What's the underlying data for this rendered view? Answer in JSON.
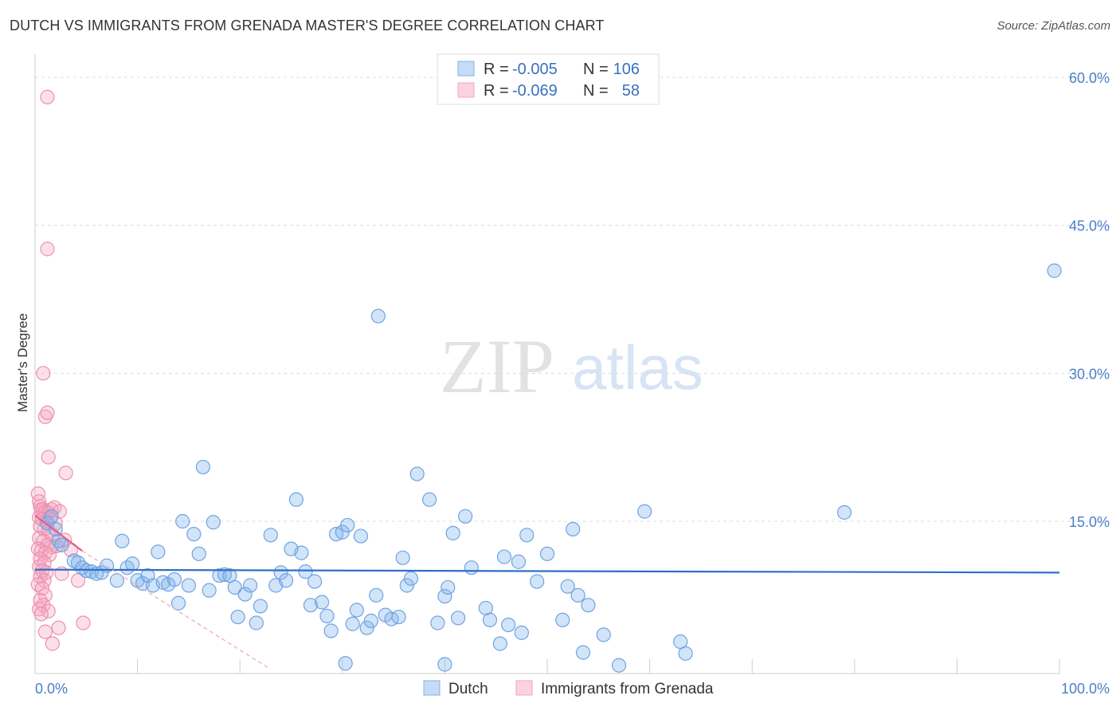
{
  "title": "DUTCH VS IMMIGRANTS FROM GRENADA MASTER'S DEGREE CORRELATION CHART",
  "source": "Source: ZipAtlas.com",
  "watermark": {
    "zip": "ZIP",
    "atlas": "atlas"
  },
  "colors": {
    "dutch": "#7fb1ec",
    "grenada": "#f3a6c0",
    "dutch_line": "#2f6fc6",
    "grenada_line": "#e75d8a",
    "tick": "#4a7ec9"
  },
  "legend": [
    {
      "r_label": "R =",
      "r_value": "-0.005",
      "n_label": "N =",
      "n_value": "106"
    },
    {
      "r_label": "R =",
      "r_value": "-0.069",
      "n_label": "N =",
      "n_value": "58"
    }
  ],
  "bottom_legend": [
    "Dutch",
    "Immigrants from Grenada"
  ],
  "chart_data": {
    "type": "scatter",
    "title": "DUTCH VS IMMIGRANTS FROM GRENADA MASTER'S DEGREE CORRELATION CHART",
    "xlabel": "",
    "ylabel": "Master's Degree",
    "xlim": [
      0,
      100
    ],
    "ylim": [
      0,
      62
    ],
    "x_tick_labels": [
      "0.0%",
      "100.0%"
    ],
    "y_ticks": [
      15,
      30,
      45,
      60
    ],
    "y_tick_labels": [
      "15.0%",
      "30.0%",
      "45.0%",
      "60.0%"
    ],
    "grid": true,
    "legend_position": "top-center",
    "series": [
      {
        "name": "Dutch",
        "r": -0.005,
        "n": 106,
        "trend": {
          "x": [
            0,
            100
          ],
          "y": [
            10.1,
            9.8
          ]
        },
        "points": [
          [
            1.2,
            14.8
          ],
          [
            1.6,
            15.5
          ],
          [
            2.0,
            14.2
          ],
          [
            2.3,
            13.0
          ],
          [
            2.6,
            12.6
          ],
          [
            3.8,
            11.0
          ],
          [
            4.2,
            10.8
          ],
          [
            4.6,
            10.3
          ],
          [
            5.0,
            10.0
          ],
          [
            5.5,
            9.9
          ],
          [
            6.0,
            9.7
          ],
          [
            6.5,
            9.8
          ],
          [
            7.0,
            10.5
          ],
          [
            8.0,
            9.0
          ],
          [
            8.5,
            13.0
          ],
          [
            9.0,
            10.3
          ],
          [
            9.5,
            10.7
          ],
          [
            10.0,
            9.0
          ],
          [
            10.5,
            8.7
          ],
          [
            11.0,
            9.5
          ],
          [
            11.5,
            8.5
          ],
          [
            12.0,
            11.9
          ],
          [
            12.5,
            8.8
          ],
          [
            13.0,
            8.6
          ],
          [
            13.6,
            9.1
          ],
          [
            14.0,
            6.7
          ],
          [
            14.4,
            15.0
          ],
          [
            15.0,
            8.5
          ],
          [
            15.5,
            13.7
          ],
          [
            16.0,
            11.7
          ],
          [
            16.4,
            20.5
          ],
          [
            17.0,
            8.0
          ],
          [
            17.4,
            14.9
          ],
          [
            18.0,
            9.5
          ],
          [
            18.5,
            9.6
          ],
          [
            19.0,
            9.5
          ],
          [
            19.5,
            8.3
          ],
          [
            19.8,
            5.3
          ],
          [
            20.5,
            7.6
          ],
          [
            21.0,
            8.5
          ],
          [
            21.6,
            4.7
          ],
          [
            22.0,
            6.4
          ],
          [
            23.0,
            13.6
          ],
          [
            23.5,
            8.5
          ],
          [
            24.0,
            9.8
          ],
          [
            24.5,
            9.0
          ],
          [
            25.0,
            12.2
          ],
          [
            25.5,
            17.2
          ],
          [
            26.0,
            11.8
          ],
          [
            26.4,
            9.9
          ],
          [
            26.9,
            6.5
          ],
          [
            27.3,
            8.9
          ],
          [
            28.0,
            6.8
          ],
          [
            28.5,
            5.4
          ],
          [
            28.9,
            3.9
          ],
          [
            29.4,
            13.7
          ],
          [
            30.0,
            13.9
          ],
          [
            30.5,
            14.6
          ],
          [
            31.0,
            4.6
          ],
          [
            31.4,
            6.0
          ],
          [
            31.8,
            13.5
          ],
          [
            32.4,
            4.2
          ],
          [
            32.8,
            4.9
          ],
          [
            33.3,
            7.5
          ],
          [
            33.5,
            35.8
          ],
          [
            34.2,
            5.5
          ],
          [
            34.8,
            5.1
          ],
          [
            35.5,
            5.3
          ],
          [
            35.9,
            11.3
          ],
          [
            36.3,
            8.5
          ],
          [
            36.7,
            9.2
          ],
          [
            37.3,
            19.8
          ],
          [
            38.5,
            17.2
          ],
          [
            39.3,
            4.7
          ],
          [
            40.0,
            7.4
          ],
          [
            40.3,
            8.3
          ],
          [
            40.8,
            13.8
          ],
          [
            41.3,
            5.2
          ],
          [
            42.0,
            15.5
          ],
          [
            42.6,
            10.3
          ],
          [
            44.0,
            6.2
          ],
          [
            44.4,
            5.0
          ],
          [
            45.4,
            2.6
          ],
          [
            45.8,
            11.4
          ],
          [
            46.2,
            4.5
          ],
          [
            47.2,
            10.9
          ],
          [
            47.5,
            3.7
          ],
          [
            48.0,
            13.6
          ],
          [
            49.0,
            8.9
          ],
          [
            50.0,
            11.7
          ],
          [
            51.5,
            5.0
          ],
          [
            52.0,
            8.4
          ],
          [
            53.0,
            7.5
          ],
          [
            53.5,
            1.7
          ],
          [
            54.0,
            6.5
          ],
          [
            55.5,
            3.5
          ],
          [
            57.0,
            0.4
          ],
          [
            59.5,
            16.0
          ],
          [
            63.0,
            2.8
          ],
          [
            63.5,
            1.6
          ],
          [
            79.0,
            15.9
          ],
          [
            99.5,
            40.4
          ],
          [
            30.3,
            0.6
          ],
          [
            40.0,
            0.5
          ],
          [
            52.5,
            14.2
          ]
        ]
      },
      {
        "name": "Immigrants from Grenada",
        "r": -0.069,
        "n": 58,
        "trend": {
          "x": [
            0,
            4.6
          ],
          "y": [
            15.6,
            12.0
          ]
        },
        "trend_extended": {
          "x": [
            4.6,
            23.0
          ],
          "y": [
            12.0,
            0
          ]
        },
        "points": [
          [
            1.2,
            58.0
          ],
          [
            1.2,
            42.6
          ],
          [
            0.8,
            30.0
          ],
          [
            1.0,
            25.6
          ],
          [
            1.2,
            26.0
          ],
          [
            1.3,
            21.5
          ],
          [
            3.0,
            19.9
          ],
          [
            0.3,
            17.8
          ],
          [
            0.4,
            17.0
          ],
          [
            0.5,
            16.5
          ],
          [
            0.6,
            16.2
          ],
          [
            0.8,
            16.2
          ],
          [
            1.0,
            16.0
          ],
          [
            1.3,
            15.9
          ],
          [
            1.6,
            16.2
          ],
          [
            1.9,
            16.4
          ],
          [
            2.4,
            16.0
          ],
          [
            0.4,
            15.4
          ],
          [
            0.7,
            15.2
          ],
          [
            1.1,
            15.0
          ],
          [
            1.5,
            15.3
          ],
          [
            2.0,
            14.8
          ],
          [
            0.5,
            14.5
          ],
          [
            0.9,
            14.2
          ],
          [
            1.3,
            14.0
          ],
          [
            1.7,
            13.6
          ],
          [
            0.4,
            13.3
          ],
          [
            0.8,
            13.0
          ],
          [
            1.2,
            12.6
          ],
          [
            1.6,
            12.4
          ],
          [
            0.3,
            12.2
          ],
          [
            0.6,
            12.0
          ],
          [
            1.0,
            11.8
          ],
          [
            1.4,
            11.6
          ],
          [
            0.5,
            11.2
          ],
          [
            0.9,
            10.8
          ],
          [
            0.4,
            10.4
          ],
          [
            0.7,
            10.0
          ],
          [
            1.1,
            9.8
          ],
          [
            0.5,
            9.4
          ],
          [
            0.9,
            9.0
          ],
          [
            0.3,
            8.6
          ],
          [
            0.7,
            8.2
          ],
          [
            1.0,
            7.5
          ],
          [
            0.5,
            7.0
          ],
          [
            0.8,
            6.5
          ],
          [
            0.4,
            6.1
          ],
          [
            1.3,
            5.9
          ],
          [
            0.6,
            5.6
          ],
          [
            1.0,
            3.8
          ],
          [
            1.7,
            2.6
          ],
          [
            2.3,
            4.2
          ],
          [
            4.7,
            4.7
          ],
          [
            2.6,
            9.7
          ],
          [
            4.2,
            9.0
          ],
          [
            2.9,
            13.1
          ],
          [
            3.5,
            12.1
          ],
          [
            2.1,
            12.5
          ]
        ]
      }
    ]
  }
}
